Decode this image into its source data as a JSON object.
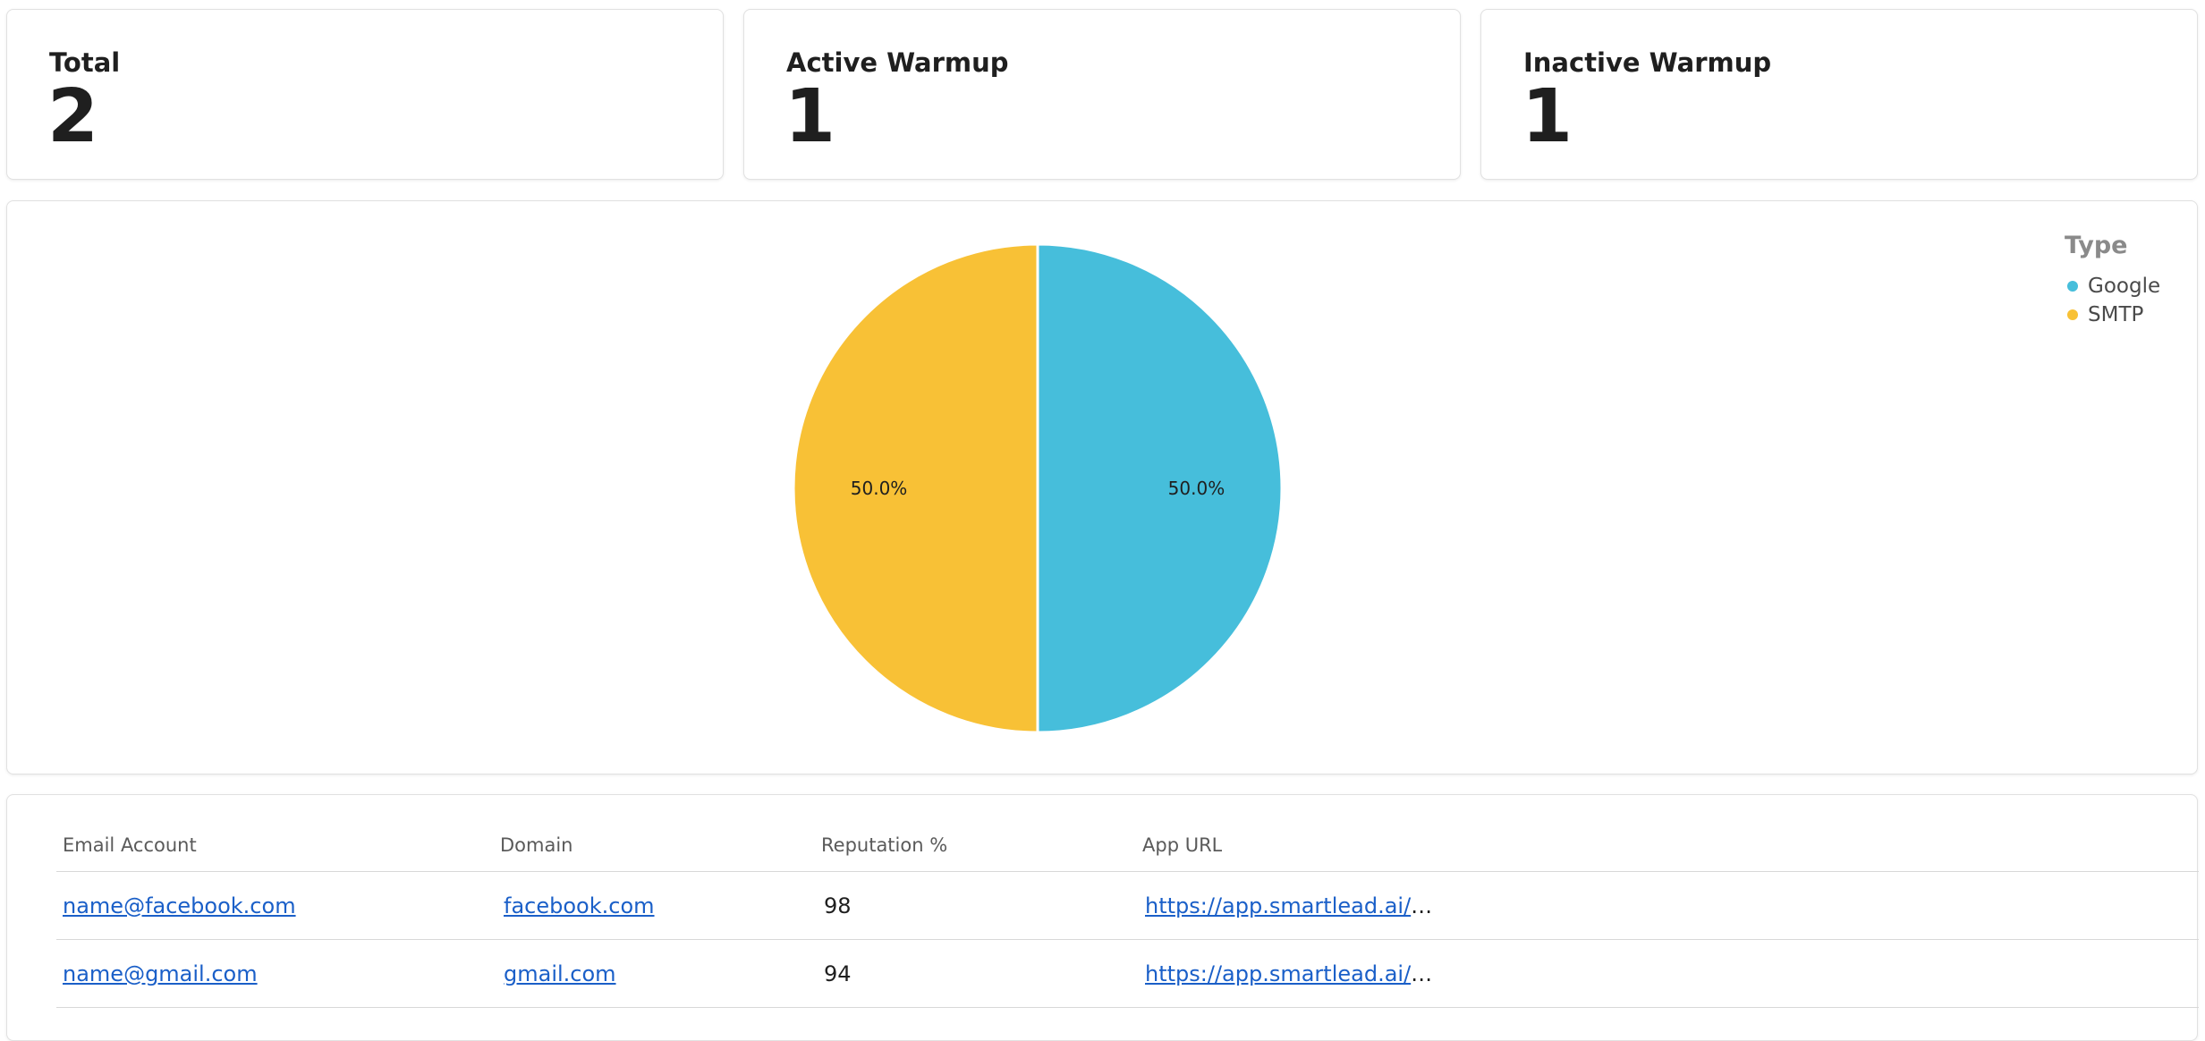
{
  "stats": [
    {
      "title": "Total",
      "value": "2"
    },
    {
      "title": "Active Warmup",
      "value": "1"
    },
    {
      "title": "Inactive Warmup",
      "value": "1"
    }
  ],
  "chart_data": {
    "type": "pie",
    "categories": [
      "Google",
      "SMTP"
    ],
    "values": [
      1,
      1
    ],
    "labels": [
      "50.0%",
      "50.0%"
    ],
    "colors": [
      "#46bedb",
      "#f8c136"
    ],
    "legend_title": "Type",
    "legend_position": "top-right"
  },
  "table": {
    "headers": [
      "Email Account",
      "Domain",
      "Reputation %",
      "App URL"
    ],
    "rows": [
      {
        "email": "name@facebook.com",
        "domain": "facebook.com",
        "reputation": "98",
        "app_url": "https://app.smartlead.ai/a..."
      },
      {
        "email": "name@gmail.com",
        "domain": "gmail.com",
        "reputation": "94",
        "app_url": "https://app.smartlead.ai/a..."
      }
    ]
  }
}
